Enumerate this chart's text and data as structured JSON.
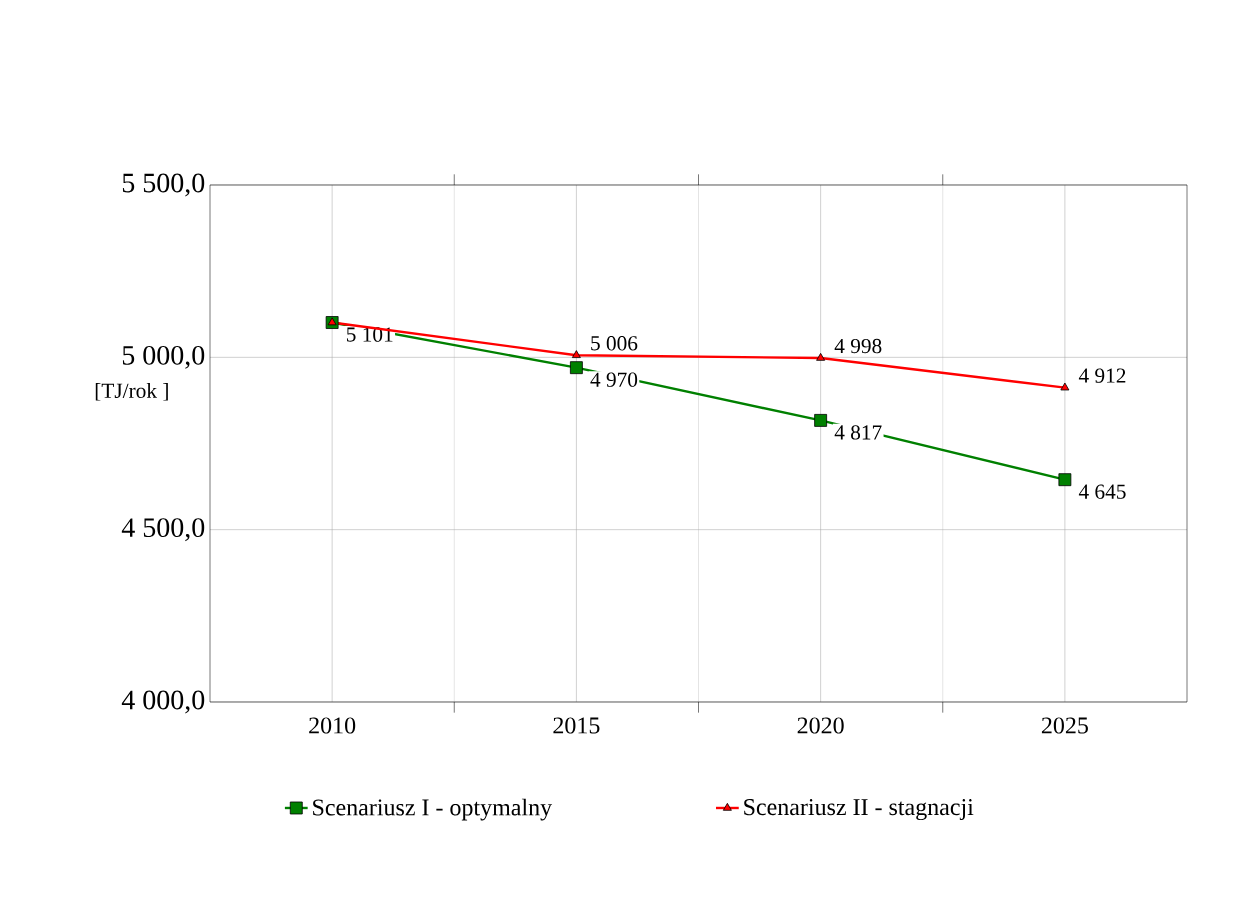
{
  "chart_data": {
    "type": "line",
    "ylabel": "[TJ/rok ]",
    "categories": [
      "2010",
      "2015",
      "2020",
      "2025"
    ],
    "series": [
      {
        "name": "Scenariusz I - optymalny",
        "color": "#008000",
        "marker": "square",
        "values": [
          5101,
          4970,
          4817,
          4645
        ],
        "value_labels": [
          "5 101",
          "4 970",
          "4 817",
          "4 645"
        ]
      },
      {
        "name": "Scenariusz II - stagnacji",
        "color": "#ff0000",
        "marker": "triangle",
        "values": [
          5101,
          5006,
          4998,
          4912
        ],
        "value_labels": [
          null,
          "5 006",
          "4 998",
          "4 912"
        ]
      }
    ],
    "ylim": [
      4000,
      5500
    ],
    "yticks": [
      {
        "value": 4000,
        "label": "4 000,0"
      },
      {
        "value": 4500,
        "label": "4 500,0"
      },
      {
        "value": 5000,
        "label": "5 000,0"
      },
      {
        "value": 5500,
        "label": "5 500,0"
      }
    ],
    "grid": true,
    "legend": "bottom",
    "line_style": "solid"
  }
}
